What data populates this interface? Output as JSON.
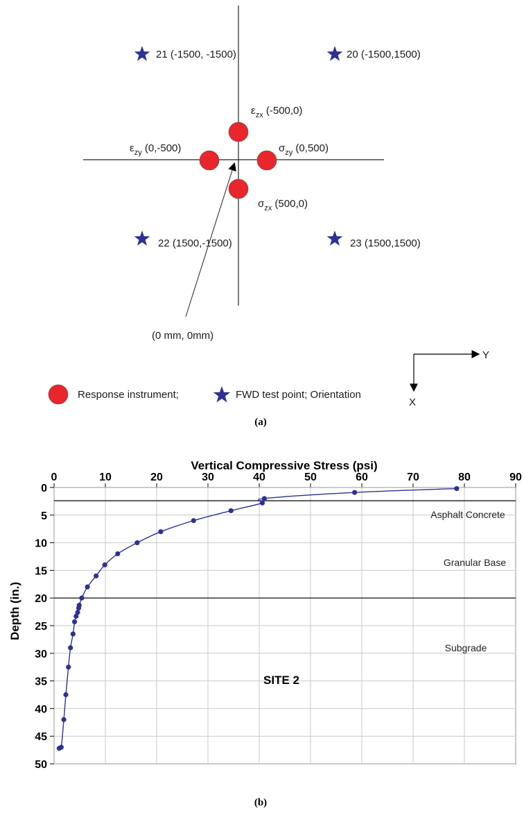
{
  "panel_a": {
    "caption": "(a)",
    "stars": [
      {
        "label": "21 (-1500, -1500)"
      },
      {
        "label": "20 (-1500,1500)"
      },
      {
        "label": "22 (1500,-1500)"
      },
      {
        "label": "23 (1500,1500)"
      }
    ],
    "instruments": [
      {
        "sym": "ε",
        "sub": "zx",
        "coord": " (-500,0)"
      },
      {
        "sym": "ε",
        "sub": "zy",
        "coord": " (0,-500)"
      },
      {
        "sym": "σ",
        "sub": "zy",
        "coord": " (0,500)"
      },
      {
        "sym": "σ",
        "sub": "zx",
        "coord": " (500,0)"
      }
    ],
    "origin_label": "(0 mm, 0mm)",
    "orientation": {
      "y_label": "Y",
      "x_label": "X"
    },
    "legend": {
      "instrument_text": "Response instrument;",
      "fwd_text": "FWD test point; Orientation"
    },
    "colors": {
      "instrument": "#e8262b",
      "star": "#2e3192"
    }
  },
  "panel_b": {
    "caption": "(b)"
  },
  "chart_data": {
    "type": "line",
    "title": "Vertical Compressive Stress (psi)",
    "xlabel": "Vertical Compressive Stress (psi)",
    "ylabel": "Depth (in.)",
    "xlim": [
      0,
      90
    ],
    "ylim": [
      0,
      50
    ],
    "y_inverted": true,
    "x_ticks": [
      "0",
      "10",
      "20",
      "30",
      "40",
      "50",
      "60",
      "70",
      "80",
      "90"
    ],
    "y_ticks": [
      "0",
      "5",
      "10",
      "15",
      "20",
      "25",
      "30",
      "35",
      "40",
      "45",
      "50"
    ],
    "grid": true,
    "series": [
      {
        "x": [
          78.5,
          58.6,
          41.0,
          40.6,
          34.5,
          27.2,
          20.8,
          16.2,
          12.4,
          9.9,
          8.2,
          6.5,
          5.4,
          4.9,
          4.8,
          4.6,
          4.3,
          4.0,
          3.7,
          3.2,
          2.8,
          2.3,
          1.9,
          1.4,
          1.0
        ],
        "y": [
          0.2,
          0.9,
          2.0,
          2.8,
          4.2,
          6.0,
          8.0,
          10.0,
          12.0,
          14.0,
          16.0,
          18.0,
          20.0,
          21.3,
          21.8,
          22.6,
          23.3,
          24.3,
          26.5,
          29.0,
          32.5,
          37.5,
          42.0,
          47.0,
          47.2
        ],
        "color": "#2e3192"
      }
    ],
    "layer_boundaries": [
      2.4,
      20
    ],
    "layers": [
      "Asphalt Concrete",
      "Granular Base",
      "Subgrade"
    ],
    "annotation": "SITE 2"
  }
}
